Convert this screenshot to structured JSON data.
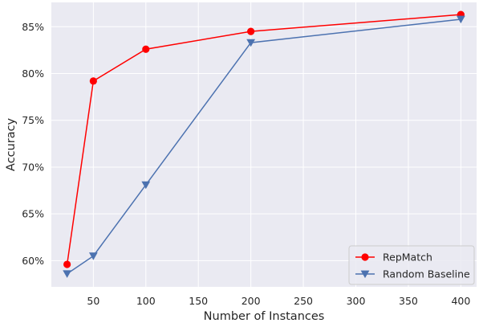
{
  "chart_data": {
    "type": "line",
    "title": "",
    "xlabel": "Number of Instances",
    "ylabel": "Accuracy",
    "xlim": [
      10,
      415
    ],
    "ylim": [
      57.2,
      87.6
    ],
    "xticks": [
      50,
      100,
      150,
      200,
      250,
      300,
      350,
      400
    ],
    "yticks": [
      60,
      65,
      70,
      75,
      80,
      85
    ],
    "ytick_labels": [
      "60%",
      "65%",
      "70%",
      "75%",
      "80%",
      "85%"
    ],
    "grid": true,
    "legend_position": "bottom-right",
    "series": [
      {
        "name": "RepMatch",
        "color": "#ff0000",
        "marker": "circle",
        "x": [
          25,
          50,
          100,
          200,
          400
        ],
        "y": [
          59.6,
          79.2,
          82.6,
          84.5,
          86.3
        ]
      },
      {
        "name": "Random Baseline",
        "color": "#4c72b0",
        "marker": "triangle-down",
        "x": [
          25,
          50,
          100,
          200,
          400
        ],
        "y": [
          58.6,
          60.5,
          68.1,
          83.3,
          85.8
        ]
      }
    ]
  }
}
